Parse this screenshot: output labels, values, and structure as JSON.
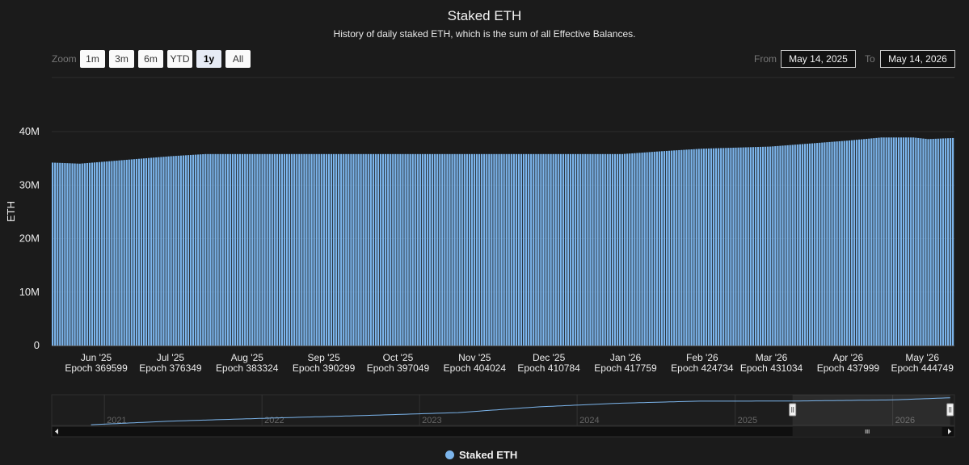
{
  "chart_data": {
    "type": "bar",
    "title": "Staked ETH",
    "subtitle": "History of daily staked ETH, which is the sum of all Effective Balances.",
    "ylabel": "ETH",
    "ylim": [
      0,
      40000000
    ],
    "y_ticks": [
      "0",
      "10M",
      "20M",
      "30M",
      "40M"
    ],
    "series": [
      {
        "name": "Staked ETH",
        "color": "#7cb5ec"
      }
    ],
    "x_range": [
      "2025-05-14",
      "2026-05-14"
    ],
    "x_ticks": [
      {
        "date": "2025-06-01",
        "month": "Jun '25",
        "epoch": "Epoch 369599"
      },
      {
        "date": "2025-07-01",
        "month": "Jul '25",
        "epoch": "Epoch 376349"
      },
      {
        "date": "2025-08-01",
        "month": "Aug '25",
        "epoch": "Epoch 383324"
      },
      {
        "date": "2025-09-01",
        "month": "Sep '25",
        "epoch": "Epoch 390299"
      },
      {
        "date": "2025-10-01",
        "month": "Oct '25",
        "epoch": "Epoch 397049"
      },
      {
        "date": "2025-11-01",
        "month": "Nov '25",
        "epoch": "Epoch 404024"
      },
      {
        "date": "2025-12-01",
        "month": "Dec '25",
        "epoch": "Epoch 410784"
      },
      {
        "date": "2026-01-01",
        "month": "Jan '26",
        "epoch": "Epoch 417759"
      },
      {
        "date": "2026-02-01",
        "month": "Feb '26",
        "epoch": "Epoch 424734"
      },
      {
        "date": "2026-03-01",
        "month": "Mar '26",
        "epoch": "Epoch 431034"
      },
      {
        "date": "2026-04-01",
        "month": "Apr '26",
        "epoch": "Epoch 437999"
      },
      {
        "date": "2026-05-01",
        "month": "May '26",
        "epoch": "Epoch 444749"
      }
    ],
    "daily_values_keypoints": [
      {
        "date": "2025-05-14",
        "value": 34200000
      },
      {
        "date": "2025-05-25",
        "value": 34000000
      },
      {
        "date": "2025-06-15",
        "value": 34800000
      },
      {
        "date": "2025-07-01",
        "value": 35400000
      },
      {
        "date": "2025-07-15",
        "value": 35800000
      },
      {
        "date": "2025-08-01",
        "value": 35800000
      },
      {
        "date": "2025-12-31",
        "value": 35800000
      },
      {
        "date": "2026-01-15",
        "value": 36300000
      },
      {
        "date": "2026-02-01",
        "value": 36800000
      },
      {
        "date": "2026-03-01",
        "value": 37200000
      },
      {
        "date": "2026-04-01",
        "value": 38300000
      },
      {
        "date": "2026-04-15",
        "value": 38900000
      },
      {
        "date": "2026-04-28",
        "value": 38900000
      },
      {
        "date": "2026-05-04",
        "value": 38600000
      },
      {
        "date": "2026-05-14",
        "value": 38800000
      }
    ],
    "legend_position": "bottom-center",
    "grid": true
  },
  "navigator": {
    "years": [
      "2021",
      "2022",
      "2023",
      "2024",
      "2025",
      "2026"
    ],
    "keypoints": [
      {
        "date": "2020-12-01",
        "value": 1000000
      },
      {
        "date": "2021-06-01",
        "value": 6000000
      },
      {
        "date": "2022-03-01",
        "value": 11000000
      },
      {
        "date": "2022-09-01",
        "value": 14000000
      },
      {
        "date": "2023-04-01",
        "value": 18000000
      },
      {
        "date": "2023-10-01",
        "value": 26000000
      },
      {
        "date": "2024-04-01",
        "value": 31000000
      },
      {
        "date": "2024-10-01",
        "value": 34000000
      },
      {
        "date": "2025-05-14",
        "value": 34200000
      },
      {
        "date": "2026-01-01",
        "value": 35800000
      },
      {
        "date": "2026-05-14",
        "value": 38800000
      }
    ],
    "selected_range": [
      "2025-05-14",
      "2026-05-14"
    ]
  },
  "zoom": {
    "label": "Zoom",
    "buttons": [
      "1m",
      "3m",
      "6m",
      "YTD",
      "1y",
      "All"
    ],
    "active": "1y"
  },
  "range": {
    "from_label": "From",
    "from_value": "May 14, 2025",
    "to_label": "To",
    "to_value": "May 14, 2026"
  },
  "legend": {
    "label": "Staked ETH"
  }
}
